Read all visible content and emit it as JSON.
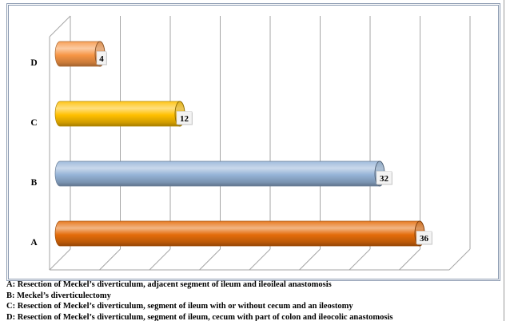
{
  "chart_data": {
    "type": "bar",
    "orientation": "horizontal",
    "3d": true,
    "categories": [
      "A",
      "B",
      "C",
      "D"
    ],
    "values": [
      36,
      32,
      12,
      4
    ],
    "colors": [
      "#E46C0A",
      "#95B3D7",
      "#FFC000",
      "#F79646"
    ],
    "xlim": [
      0,
      40
    ],
    "x_grid_step": 5,
    "grid": true,
    "data_labels": true
  },
  "notes": [
    "A: Resection of Meckel’s diverticulum, adjacent segment of ileum and ileoileal anastomosis",
    "B: Meckel’s diverticulectomy",
    "C: Resection of Meckel’s diverticulum, segment of ileum with or without cecum and an ileostomy",
    "D: Resection of Meckel’s diverticulum, segment of ileum, cecum with part of colon and ileocolic anastomosis"
  ]
}
